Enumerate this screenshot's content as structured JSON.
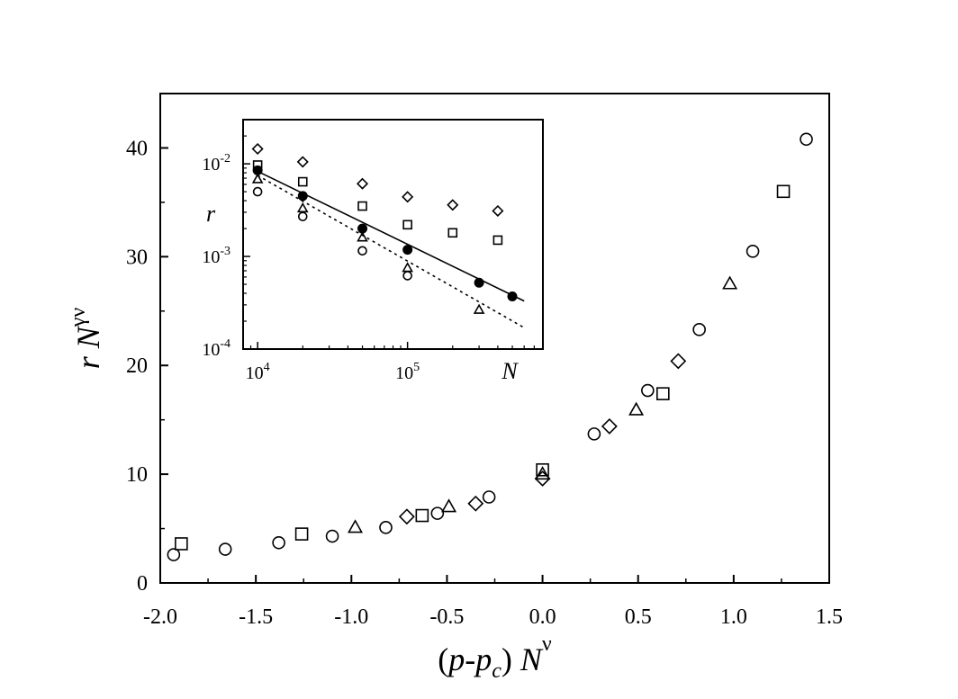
{
  "chart_data": [
    {
      "type": "scatter",
      "title": "",
      "xlabel": "(p-p_c) N^ν",
      "ylabel": "r N^γν",
      "xlim": [
        -2.0,
        1.5
      ],
      "ylim": [
        0,
        45
      ],
      "xticks": [
        -2.0,
        -1.5,
        -1.0,
        -0.5,
        0.0,
        0.5,
        1.0,
        1.5
      ],
      "xtick_labels": [
        "-2.0",
        "-1.5",
        "-1.0",
        "-0.5",
        "0.0",
        "0.5",
        "1.0",
        "1.5"
      ],
      "yticks": [
        0,
        10,
        20,
        30,
        40
      ],
      "ytick_labels": [
        "0",
        "10",
        "20",
        "30",
        "40"
      ],
      "grid": false,
      "legend": "none",
      "series": [
        {
          "marker": "circle",
          "points": [
            [
              -1.93,
              2.6
            ],
            [
              -1.66,
              3.1
            ],
            [
              -1.38,
              3.7
            ],
            [
              -1.1,
              4.3
            ],
            [
              -0.82,
              5.1
            ],
            [
              -0.55,
              6.4
            ],
            [
              -0.28,
              7.9
            ],
            [
              0.27,
              13.7
            ],
            [
              0.55,
              17.7
            ],
            [
              0.82,
              23.3
            ],
            [
              1.1,
              30.5
            ],
            [
              1.38,
              40.8
            ]
          ]
        },
        {
          "marker": "square",
          "points": [
            [
              -1.89,
              3.6
            ],
            [
              -1.26,
              4.5
            ],
            [
              -0.63,
              6.2
            ],
            [
              0.0,
              10.4
            ],
            [
              0.63,
              17.4
            ],
            [
              1.26,
              36.0
            ]
          ]
        },
        {
          "marker": "triangle",
          "points": [
            [
              -0.98,
              5.1
            ],
            [
              -0.49,
              7.0
            ],
            [
              0.0,
              10.0
            ],
            [
              0.49,
              15.9
            ],
            [
              0.98,
              27.5
            ]
          ]
        },
        {
          "marker": "diamond",
          "points": [
            [
              -0.71,
              6.1
            ],
            [
              -0.35,
              7.3
            ],
            [
              0.0,
              9.6
            ],
            [
              0.35,
              14.4
            ],
            [
              0.71,
              20.4
            ]
          ]
        }
      ]
    },
    {
      "type": "scatter",
      "title": "",
      "xlabel": "N",
      "ylabel": "r",
      "xscale": "log",
      "yscale": "log",
      "xlim": [
        8000,
        800000
      ],
      "ylim": [
        0.0001,
        0.03
      ],
      "xticks": [
        10000,
        100000
      ],
      "xtick_labels": [
        {
          "base": "10",
          "exp": "4"
        },
        {
          "base": "10",
          "exp": "5"
        }
      ],
      "yticks": [
        0.0001,
        0.001,
        0.01
      ],
      "ytick_labels": [
        {
          "base": "10",
          "exp": "-4"
        },
        {
          "base": "10",
          "exp": "-3"
        },
        {
          "base": "10",
          "exp": "-2"
        }
      ],
      "grid": false,
      "legend": "none",
      "series": [
        {
          "marker": "diamond",
          "points": [
            [
              10000,
              0.0145
            ],
            [
              20000,
              0.0105
            ],
            [
              50000,
              0.0061
            ],
            [
              100000,
              0.0044
            ],
            [
              200000,
              0.0036
            ],
            [
              400000,
              0.0031
            ]
          ]
        },
        {
          "marker": "square",
          "points": [
            [
              10000,
              0.0097
            ],
            [
              20000,
              0.0064
            ],
            [
              50000,
              0.0035
            ],
            [
              100000,
              0.0022
            ],
            [
              200000,
              0.0018
            ],
            [
              400000,
              0.0015
            ]
          ]
        },
        {
          "marker": "triangle",
          "points": [
            [
              10000,
              0.0068
            ],
            [
              20000,
              0.0033
            ],
            [
              50000,
              0.0016
            ],
            [
              100000,
              0.00075
            ],
            [
              300000,
              0.000265
            ]
          ]
        },
        {
          "marker": "circle",
          "points": [
            [
              10000,
              0.005
            ],
            [
              20000,
              0.0027
            ],
            [
              50000,
              0.00115
            ],
            [
              100000,
              0.00062
            ]
          ]
        },
        {
          "marker": "filled-circle",
          "points": [
            [
              10000,
              0.0085
            ],
            [
              20000,
              0.0045
            ],
            [
              50000,
              0.002
            ],
            [
              100000,
              0.00118
            ],
            [
              300000,
              0.00052
            ],
            [
              500000,
              0.00037
            ]
          ]
        },
        {
          "type": "line",
          "style": "solid",
          "points": [
            [
              10000,
              0.0083
            ],
            [
              600000,
              0.00033
            ]
          ]
        },
        {
          "type": "line",
          "style": "dotted",
          "points": [
            [
              10000,
              0.0075
            ],
            [
              600000,
              0.00017
            ]
          ]
        }
      ]
    }
  ]
}
